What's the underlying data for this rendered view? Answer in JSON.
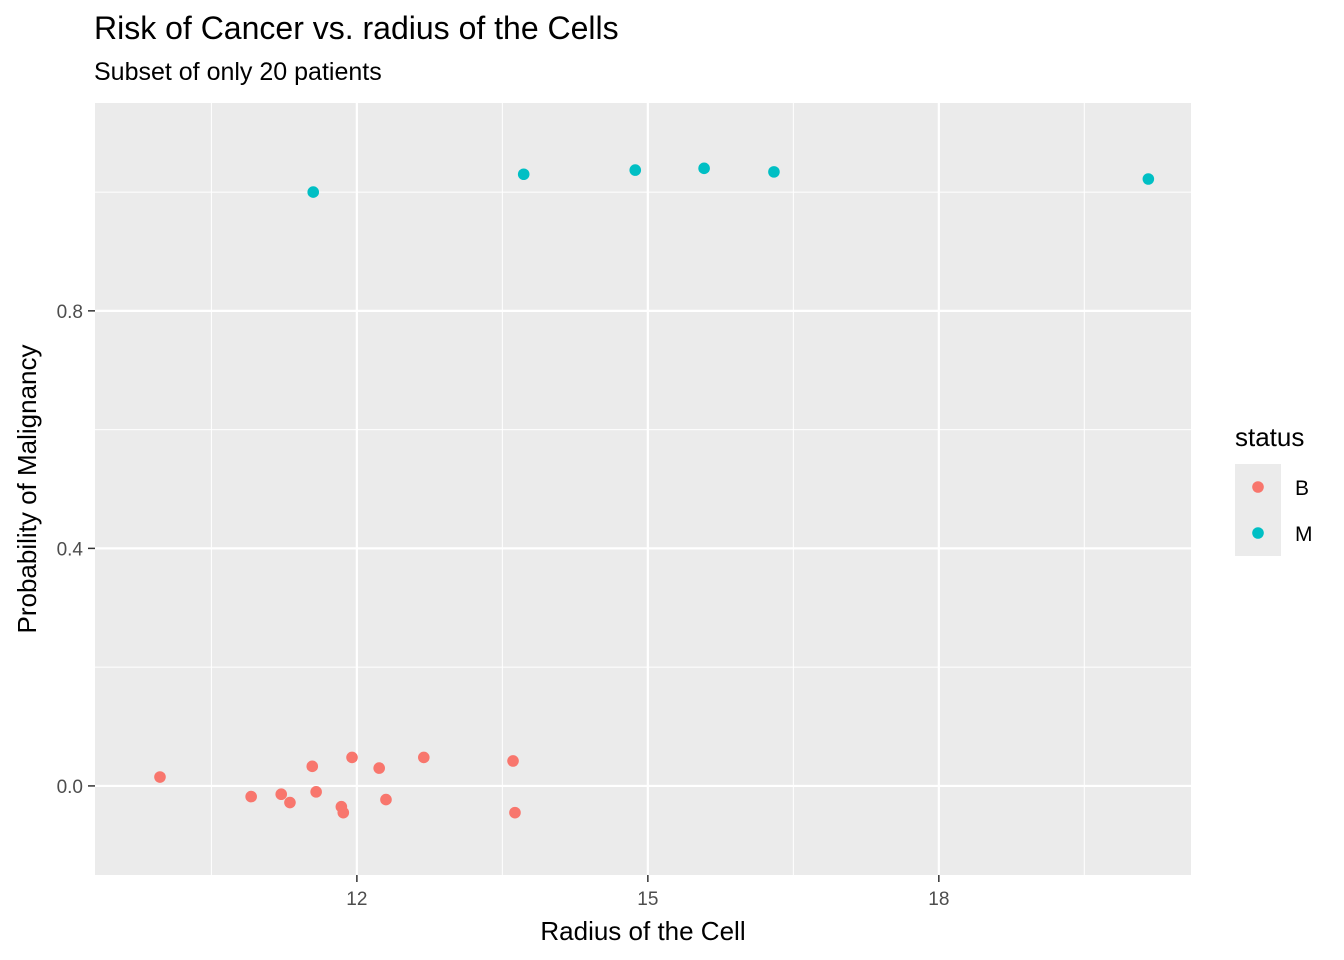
{
  "chart_data": {
    "type": "scatter",
    "title": "Risk of Cancer vs. radius of the Cells",
    "subtitle": "Subset of only 20 patients",
    "xlabel": "Radius of the Cell",
    "ylabel": "Probability of Malignancy",
    "xlim": [
      9.3,
      20.6
    ],
    "ylim": [
      -0.15,
      1.15
    ],
    "x_ticks": [
      12,
      15,
      18
    ],
    "x_tick_labels": [
      "12",
      "15",
      "18"
    ],
    "y_ticks": [
      0.0,
      0.4,
      0.8
    ],
    "y_tick_labels": [
      "0.0",
      "0.4",
      "0.8"
    ],
    "grid": true,
    "legend": {
      "title": "status",
      "position": "right"
    },
    "series": [
      {
        "name": "B",
        "color": "#F8766D",
        "points": [
          {
            "x": 9.97,
            "y": 0.015
          },
          {
            "x": 10.91,
            "y": -0.018
          },
          {
            "x": 11.22,
            "y": -0.014
          },
          {
            "x": 11.31,
            "y": -0.028
          },
          {
            "x": 11.54,
            "y": 0.033
          },
          {
            "x": 11.58,
            "y": -0.01
          },
          {
            "x": 11.84,
            "y": -0.035
          },
          {
            "x": 11.86,
            "y": -0.045
          },
          {
            "x": 11.95,
            "y": 0.048
          },
          {
            "x": 12.23,
            "y": 0.03
          },
          {
            "x": 12.3,
            "y": -0.023
          },
          {
            "x": 12.69,
            "y": 0.048
          },
          {
            "x": 13.61,
            "y": 0.042
          },
          {
            "x": 13.63,
            "y": -0.045
          }
        ]
      },
      {
        "name": "M",
        "color": "#00BFC4",
        "points": [
          {
            "x": 11.55,
            "y": 1.0
          },
          {
            "x": 13.72,
            "y": 1.03
          },
          {
            "x": 14.87,
            "y": 1.037
          },
          {
            "x": 15.58,
            "y": 1.04
          },
          {
            "x": 16.3,
            "y": 1.034
          },
          {
            "x": 20.16,
            "y": 1.022
          }
        ]
      }
    ]
  }
}
